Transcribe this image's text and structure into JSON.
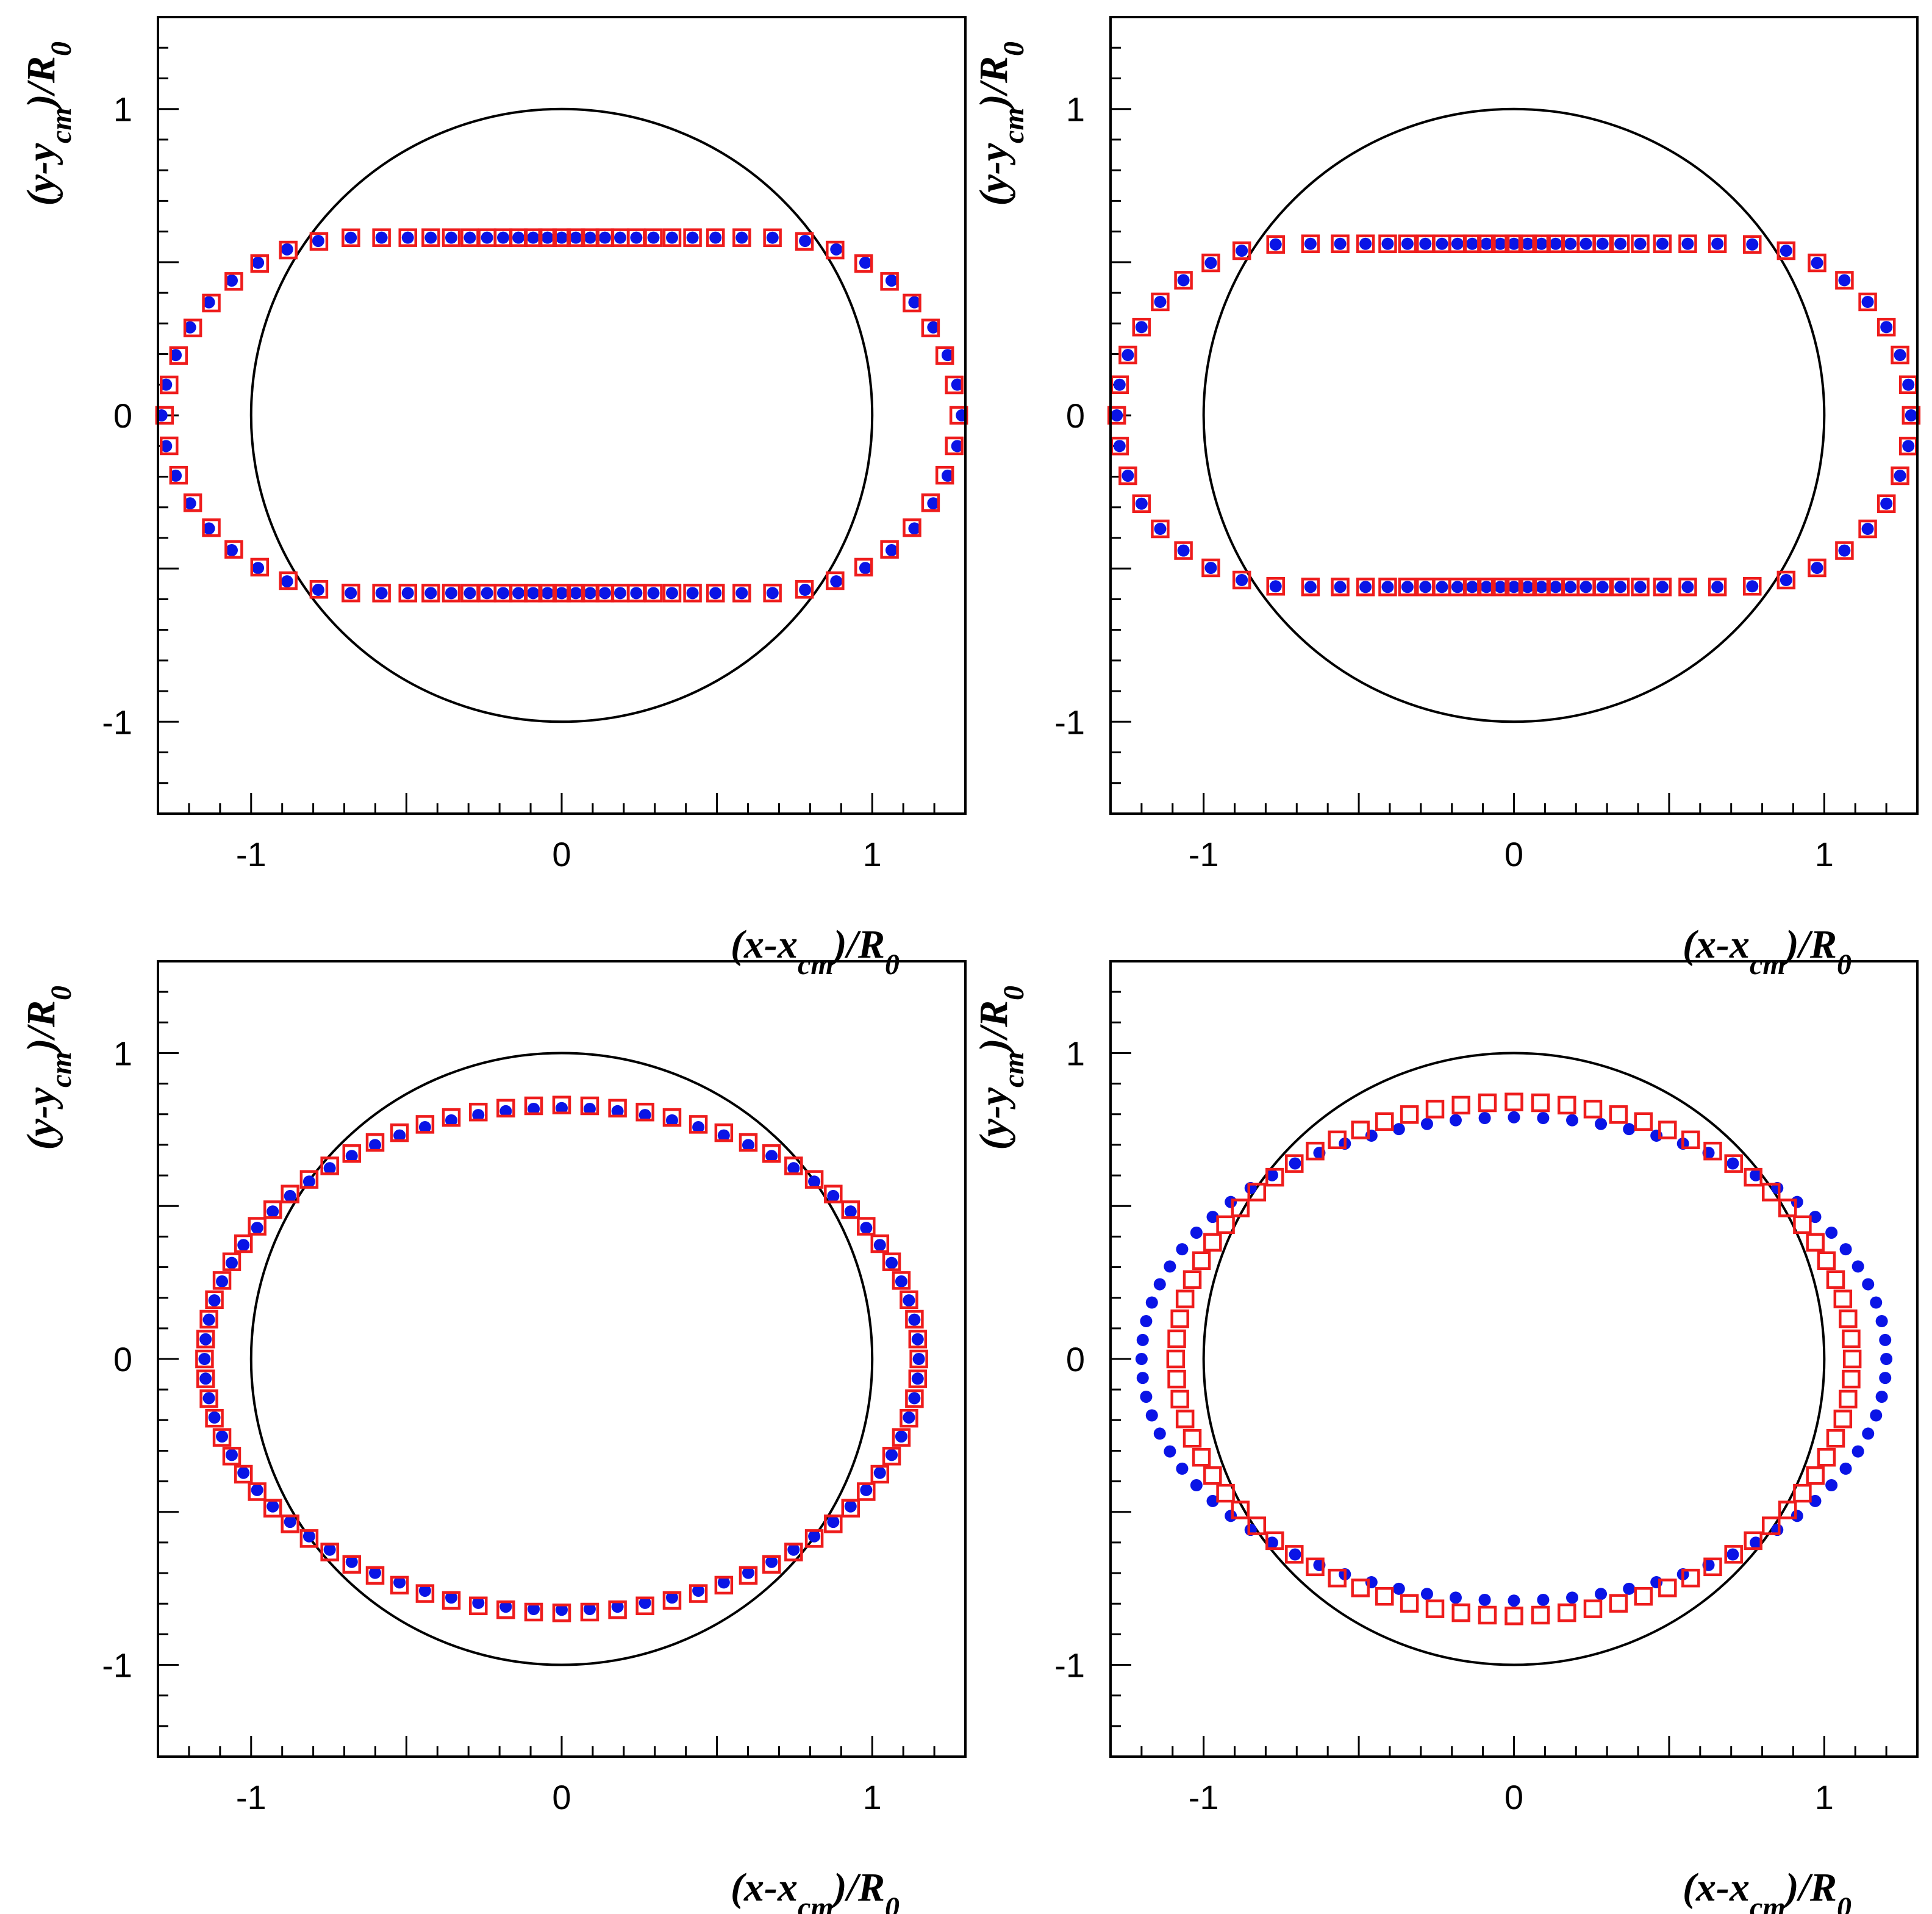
{
  "colors": {
    "series_a": "#0a14e6",
    "series_b": "#ee1c1c",
    "reference": "#000000"
  },
  "chart_data": [
    {
      "type": "scatter",
      "xlabel": "(x-x_cm)/R_0",
      "ylabel": "(y-y_cm)/R_0",
      "xlim": [
        -1.3,
        1.3
      ],
      "ylim": [
        -1.3,
        1.3
      ],
      "xticks": [
        "-1",
        "0",
        "1"
      ],
      "yticks": [
        "1",
        "0",
        "-1"
      ],
      "reference_circle_radius": 1.0,
      "series": [
        {
          "marker": "filled-circle",
          "color": "#0a14e6",
          "shape": "stadium",
          "half_width": 1.29,
          "half_height": 0.58,
          "corner_radius": 0.62,
          "n_points": 80
        },
        {
          "marker": "open-square",
          "color": "#ee1c1c",
          "shape": "stadium",
          "half_width": 1.28,
          "half_height": 0.58,
          "corner_radius": 0.62,
          "n_points": 80
        }
      ]
    },
    {
      "type": "scatter",
      "xlabel": "(x-x_cm)/R_0",
      "ylabel": "(y-y_cm)/R_0",
      "xlim": [
        -1.3,
        1.3
      ],
      "ylim": [
        -1.3,
        1.3
      ],
      "xticks": [
        "-1",
        "0",
        "1"
      ],
      "yticks": [
        "1",
        "0",
        "-1"
      ],
      "reference_circle_radius": 1.0,
      "series": [
        {
          "marker": "filled-circle",
          "color": "#0a14e6",
          "shape": "stadium",
          "half_width": 1.28,
          "half_height": 0.56,
          "corner_radius": 0.56,
          "n_points": 80
        },
        {
          "marker": "open-square",
          "color": "#ee1c1c",
          "shape": "stadium",
          "half_width": 1.28,
          "half_height": 0.56,
          "corner_radius": 0.56,
          "n_points": 80
        }
      ]
    },
    {
      "type": "scatter",
      "xlabel": "(x-x_cm)/R_0",
      "ylabel": "(y-y_cm)/R_0",
      "xlim": [
        -1.3,
        1.3
      ],
      "ylim": [
        -1.3,
        1.3
      ],
      "xticks": [
        "-1",
        "0",
        "1"
      ],
      "yticks": [
        "1",
        "0",
        "-1"
      ],
      "reference_circle_radius": 1.0,
      "series": [
        {
          "marker": "filled-circle",
          "color": "#0a14e6",
          "shape": "ellipse",
          "half_width": 1.15,
          "half_height": 0.82,
          "n_points": 80
        },
        {
          "marker": "open-square",
          "color": "#ee1c1c",
          "shape": "ellipse",
          "half_width": 1.15,
          "half_height": 0.83,
          "n_points": 80
        }
      ]
    },
    {
      "type": "scatter",
      "xlabel": "(x-x_cm)/R_0",
      "ylabel": "(y-y_cm)/R_0",
      "xlim": [
        -1.3,
        1.3
      ],
      "ylim": [
        -1.3,
        1.3
      ],
      "xticks": [
        "-1",
        "0",
        "1"
      ],
      "yticks": [
        "1",
        "0",
        "-1"
      ],
      "reference_circle_radius": 1.0,
      "series": [
        {
          "marker": "filled-circle",
          "color": "#0a14e6",
          "shape": "ellipse",
          "half_width": 1.2,
          "half_height": 0.79,
          "n_points": 80
        },
        {
          "marker": "open-square",
          "color": "#ee1c1c",
          "shape": "ellipse",
          "half_width": 1.09,
          "half_height": 0.84,
          "n_points": 80
        }
      ]
    }
  ]
}
